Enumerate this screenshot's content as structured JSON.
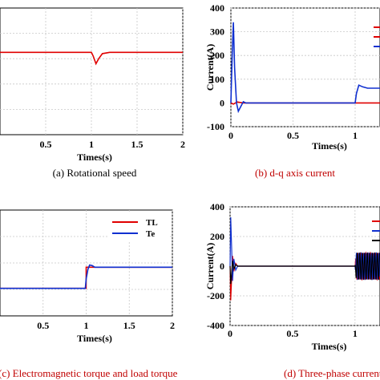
{
  "chart_data": [
    {
      "type": "line",
      "caption": "(a) Rotational speed",
      "caption_color": "#000000",
      "xlabel": "Times(s)",
      "ylabel": "",
      "xlim": [
        0,
        2
      ],
      "ylim": [
        0,
        1
      ],
      "xticks": [
        "0.5",
        "1",
        "1.5",
        "2"
      ],
      "yticks": [],
      "grid": true,
      "legend": [],
      "series": [
        {
          "color": "#e00000",
          "x": [
            0,
            1.0,
            1.02,
            1.05,
            1.08,
            1.12,
            1.2,
            2
          ],
          "y": [
            0.65,
            0.65,
            0.62,
            0.56,
            0.6,
            0.64,
            0.65,
            0.65
          ]
        }
      ]
    },
    {
      "type": "line",
      "caption": "(b) d-q axis current",
      "caption_color": "#c00000",
      "xlabel": "Times(s)",
      "ylabel": "Current(A)",
      "xlim": [
        0,
        1.2
      ],
      "ylim": [
        -100,
        400
      ],
      "xticks": [
        "0",
        "0.5",
        "1"
      ],
      "yticks": [
        "-100",
        "0",
        "100",
        "200",
        "300",
        "400"
      ],
      "grid": true,
      "legend": [],
      "series": [
        {
          "color": "#e00000",
          "x": [
            0,
            0.02,
            0.05,
            0.1,
            1.2
          ],
          "y": [
            0,
            -5,
            4,
            0,
            0
          ]
        },
        {
          "color": "#1030d0",
          "x": [
            0,
            0.01,
            0.02,
            0.03,
            0.045,
            0.06,
            0.08,
            0.1,
            0.12,
            0.15,
            1.0,
            1.01,
            1.03,
            1.06,
            1.1,
            1.2
          ],
          "y": [
            0,
            200,
            340,
            150,
            0,
            -35,
            -15,
            5,
            0,
            0,
            0,
            40,
            75,
            68,
            62,
            62
          ]
        }
      ]
    },
    {
      "type": "line",
      "caption": "(c) Electromagnetic torque and load torque",
      "caption_color": "#c00000",
      "xlabel": "Times(s)",
      "ylabel": "",
      "xlim": [
        0,
        2
      ],
      "ylim": [
        -1,
        1
      ],
      "xticks": [
        "0.5",
        "1",
        "1.5",
        "2"
      ],
      "yticks": [],
      "grid": true,
      "legend": [
        "TL",
        "Te"
      ],
      "series": [
        {
          "name": "TL",
          "color": "#e00000",
          "x": [
            0,
            0.999,
            1.0,
            2
          ],
          "y": [
            -0.48,
            -0.48,
            -0.08,
            -0.08
          ]
        },
        {
          "name": "Te",
          "color": "#1030d0",
          "x": [
            0,
            0.99,
            1.0,
            1.02,
            1.04,
            1.07,
            1.1,
            1.15,
            2
          ],
          "y": [
            -0.48,
            -0.48,
            -0.3,
            -0.12,
            -0.04,
            -0.05,
            -0.08,
            -0.08,
            -0.08
          ]
        }
      ]
    },
    {
      "type": "line",
      "caption": "(d) Three-phase current",
      "caption_color": "#c00000",
      "xlabel": "Times(s)",
      "ylabel": "Current(A)",
      "xlim": [
        0,
        1.2
      ],
      "ylim": [
        -400,
        400
      ],
      "xticks": [
        "0",
        "0.5",
        "1"
      ],
      "yticks": [
        "-400",
        "-200",
        "0",
        "200",
        "400"
      ],
      "grid": true,
      "legend": [],
      "series": [
        {
          "color": "#e00000"
        },
        {
          "color": "#1030d0"
        },
        {
          "color": "#000000"
        }
      ]
    }
  ]
}
